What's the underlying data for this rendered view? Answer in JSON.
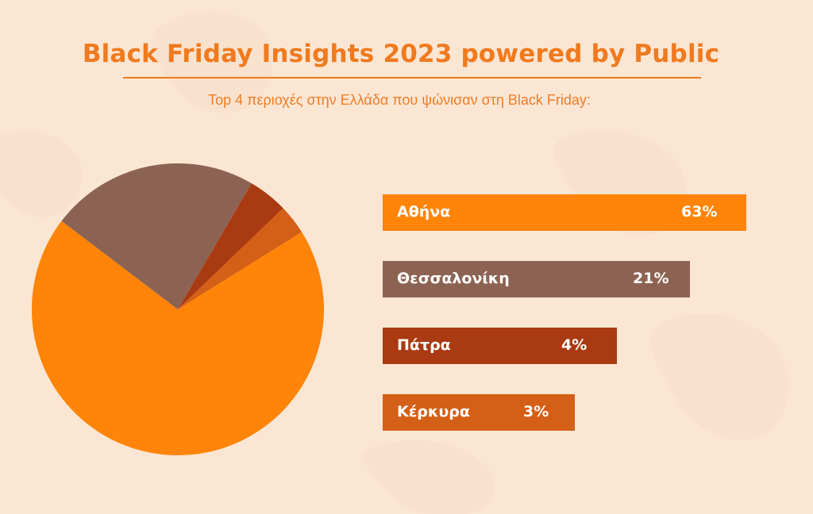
{
  "header": {
    "title": "Black Friday Insights 2023 powered by Public",
    "subtitle": "Top 4 περιοχές στην Ελλάδα που ψώνισαν στη Black Friday:"
  },
  "chart_data": {
    "type": "pie",
    "title": "Black Friday Insights 2023 powered by Public",
    "subtitle": "Top 4 περιοχές στην Ελλάδα που ψώνισαν στη Black Friday:",
    "categories": [
      "Αθήνα",
      "Θεσσαλονίκη",
      "Πάτρα",
      "Κέρκυρα"
    ],
    "values": [
      63,
      21,
      4,
      3
    ],
    "value_labels": [
      "63%",
      "21%",
      "4%",
      "3%"
    ],
    "colors": [
      "#ff8407",
      "#8c6352",
      "#a93a12",
      "#d45f16"
    ]
  }
}
